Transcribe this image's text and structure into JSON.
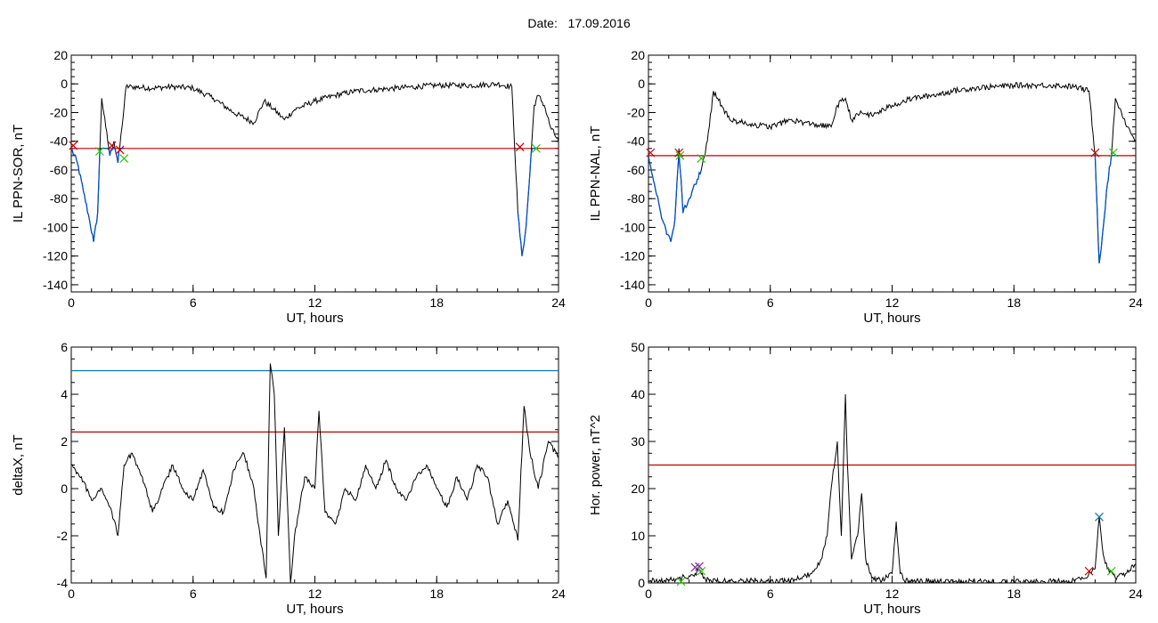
{
  "header": {
    "date_label": "Date:",
    "date_value": "17.09.2016"
  },
  "colors": {
    "ink": "#000000",
    "threshold_red": "#c00000",
    "threshold_cyan": "#0a74a8",
    "highlight_blue": "#0050c8",
    "marker_red": "#c00000",
    "marker_green": "#28c800",
    "marker_purple": "#8020a0"
  },
  "chart_data": [
    {
      "type": "line",
      "xlabel": "UT, hours",
      "ylabel": "IL PPN-SOR, nT",
      "xlim": [
        0,
        24
      ],
      "ylim": [
        -145,
        20
      ],
      "xticks": [
        "0",
        "6",
        "12",
        "18",
        "24"
      ],
      "yticks": [
        "20",
        "0",
        "-20",
        "-40",
        "-60",
        "-80",
        "-100",
        "-120",
        "-140"
      ],
      "threshold": {
        "y": -45,
        "color": "#c00000"
      },
      "series": {
        "x": [
          0,
          0.3,
          0.6,
          0.9,
          1.1,
          1.3,
          1.5,
          1.7,
          1.9,
          2.1,
          2.3,
          2.5,
          2.7,
          3,
          4,
          5,
          6,
          7,
          8,
          9,
          9.5,
          10,
          10.5,
          11,
          12,
          13,
          14,
          15,
          16,
          17,
          18,
          19,
          20,
          21,
          21.7,
          22,
          22.2,
          22.4,
          22.6,
          22.8,
          23,
          23.3,
          23.6,
          24
        ],
        "y": [
          -45,
          -55,
          -75,
          -95,
          -110,
          -90,
          -10,
          -30,
          -50,
          -40,
          -55,
          -30,
          -2,
          -2,
          -3,
          -2,
          -3,
          -10,
          -20,
          -27,
          -12,
          -18,
          -25,
          -18,
          -12,
          -8,
          -5,
          -4,
          -3,
          -2,
          -1,
          -1,
          -1,
          0,
          -2,
          -90,
          -120,
          -100,
          -60,
          -15,
          -8,
          -15,
          -30,
          -40
        ]
      },
      "highlights": [
        {
          "x_range": [
            0,
            2.6
          ]
        },
        {
          "x_range": [
            22,
            23
          ]
        }
      ],
      "markers": [
        {
          "x": 0.1,
          "y": -43,
          "shape": "x",
          "color": "#c00000"
        },
        {
          "x": 1.4,
          "y": -47,
          "shape": "x",
          "color": "#28c800"
        },
        {
          "x": 2.0,
          "y": -43,
          "shape": "x",
          "color": "#c00000"
        },
        {
          "x": 2.4,
          "y": -46,
          "shape": "x",
          "color": "#c00000"
        },
        {
          "x": 2.6,
          "y": -52,
          "shape": "x",
          "color": "#28c800"
        },
        {
          "x": 22.1,
          "y": -44,
          "shape": "x",
          "color": "#c00000"
        },
        {
          "x": 22.9,
          "y": -45,
          "shape": "x",
          "color": "#28c800"
        }
      ]
    },
    {
      "type": "line",
      "xlabel": "UT, hours",
      "ylabel": "IL PPN-NAL, nT",
      "xlim": [
        0,
        24
      ],
      "ylim": [
        -145,
        20
      ],
      "xticks": [
        "0",
        "6",
        "12",
        "18",
        "24"
      ],
      "yticks": [
        "20",
        "0",
        "-20",
        "-40",
        "-60",
        "-80",
        "-100",
        "-120",
        "-140"
      ],
      "threshold": {
        "y": -50,
        "color": "#c00000"
      },
      "series": {
        "x": [
          0,
          0.3,
          0.6,
          0.9,
          1.1,
          1.3,
          1.5,
          1.7,
          2,
          2.3,
          2.6,
          2.9,
          3.2,
          3.6,
          4,
          5,
          6,
          7,
          8,
          9,
          9.3,
          9.7,
          10,
          10.5,
          11,
          12,
          13,
          14,
          15,
          16,
          17,
          18,
          19,
          20,
          21,
          21.7,
          22,
          22.2,
          22.4,
          22.6,
          22.8,
          23,
          23.3,
          23.6,
          24
        ],
        "y": [
          -50,
          -70,
          -90,
          -105,
          -110,
          -95,
          -45,
          -90,
          -80,
          -70,
          -60,
          -40,
          -5,
          -15,
          -25,
          -28,
          -30,
          -25,
          -28,
          -30,
          -15,
          -10,
          -25,
          -20,
          -22,
          -15,
          -10,
          -8,
          -5,
          -3,
          -2,
          -1,
          -1,
          -1,
          -2,
          -5,
          -50,
          -125,
          -100,
          -70,
          -50,
          -10,
          -20,
          -30,
          -40
        ]
      },
      "highlights": [
        {
          "x_range": [
            0,
            2.6
          ]
        },
        {
          "x_range": [
            22,
            23
          ]
        }
      ],
      "markers": [
        {
          "x": 0.1,
          "y": -48,
          "shape": "x",
          "color": "#c00000"
        },
        {
          "x": 1.5,
          "y": -48,
          "shape": "x",
          "color": "#c00000"
        },
        {
          "x": 1.55,
          "y": -50,
          "shape": "x",
          "color": "#28c800"
        },
        {
          "x": 2.6,
          "y": -52,
          "shape": "x",
          "color": "#28c800"
        },
        {
          "x": 22.0,
          "y": -48,
          "shape": "x",
          "color": "#c00000"
        },
        {
          "x": 22.9,
          "y": -48,
          "shape": "x",
          "color": "#28c800"
        }
      ]
    },
    {
      "type": "line",
      "xlabel": "UT, hours",
      "ylabel": "deltaX, nT",
      "xlim": [
        0,
        24
      ],
      "ylim": [
        -4,
        6
      ],
      "xticks": [
        "0",
        "6",
        "12",
        "18",
        "24"
      ],
      "yticks": [
        "6",
        "4",
        "2",
        "0",
        "-2",
        "-4"
      ],
      "thresholds": [
        {
          "y": 5.0,
          "color": "#0a74a8"
        },
        {
          "y": 2.4,
          "color": "#c00000"
        }
      ],
      "series": {
        "x": [
          0,
          0.5,
          1,
          1.5,
          2,
          2.3,
          2.6,
          3,
          3.5,
          4,
          4.5,
          5,
          5.5,
          6,
          6.5,
          7,
          7.5,
          8,
          8.5,
          9,
          9.3,
          9.6,
          9.8,
          10,
          10.2,
          10.5,
          10.8,
          11,
          11.5,
          12,
          12.2,
          12.5,
          13,
          13.5,
          14,
          14.5,
          15,
          15.5,
          16,
          16.5,
          17,
          17.5,
          18,
          18.5,
          19,
          19.5,
          20,
          20.5,
          21,
          21.5,
          22,
          22.3,
          22.6,
          23,
          23.5,
          24
        ],
        "y": [
          1,
          0.5,
          -0.5,
          0,
          -1,
          -2,
          1,
          1.5,
          0.5,
          -1,
          0,
          1,
          0,
          -0.5,
          0.8,
          -0.8,
          -1,
          0.8,
          1.5,
          0,
          -2,
          -3.8,
          5.3,
          4,
          -2,
          2.6,
          -4,
          -2,
          0.5,
          0,
          3.3,
          -1,
          -1.5,
          0,
          -0.5,
          1,
          0,
          1.2,
          0,
          -0.5,
          0.5,
          1,
          0,
          -0.8,
          0.5,
          -0.5,
          1,
          0.5,
          -1.5,
          -0.5,
          -2.2,
          3.5,
          1.5,
          0,
          2,
          1.3
        ]
      }
    },
    {
      "type": "line",
      "xlabel": "UT, hours",
      "ylabel": "Hor. power, nT^2",
      "xlim": [
        0,
        24
      ],
      "ylim": [
        0,
        50
      ],
      "xticks": [
        "0",
        "6",
        "12",
        "18",
        "24"
      ],
      "yticks": [
        "50",
        "40",
        "30",
        "20",
        "10",
        "0"
      ],
      "threshold": {
        "y": 25,
        "color": "#c00000"
      },
      "series": {
        "x": [
          0,
          0.5,
          1,
          1.5,
          2,
          2.3,
          2.5,
          2.7,
          3,
          4,
          5,
          6,
          7,
          7.5,
          8,
          8.5,
          8.8,
          9,
          9.3,
          9.5,
          9.7,
          9.8,
          10,
          10.3,
          10.5,
          10.7,
          11,
          11.5,
          12,
          12.2,
          12.4,
          12.6,
          13,
          14,
          15,
          16,
          17,
          18,
          19,
          20,
          21,
          21.5,
          21.8,
          22,
          22.2,
          22.4,
          22.6,
          23,
          23.5,
          24
        ],
        "y": [
          0.5,
          0.3,
          0.5,
          1,
          1.5,
          2,
          3,
          1,
          0.5,
          0.3,
          0.5,
          0.2,
          0.5,
          1,
          2,
          5,
          10,
          20,
          30,
          10,
          40,
          25,
          5,
          10,
          19,
          5,
          1,
          0.5,
          2,
          13,
          2,
          0.5,
          0.3,
          0.5,
          0.2,
          0.3,
          0.2,
          0.2,
          0.2,
          0.3,
          0.5,
          1,
          2,
          3,
          14,
          6,
          3,
          1,
          2,
          4
        ]
      },
      "markers": [
        {
          "x": 2.3,
          "y": 3.3,
          "shape": "x",
          "color": "#8020a0"
        },
        {
          "x": 2.5,
          "y": 3.5,
          "shape": "x",
          "color": "#8020a0"
        },
        {
          "x": 2.6,
          "y": 2.5,
          "shape": "x",
          "color": "#28c800"
        },
        {
          "x": 1.6,
          "y": 0.3,
          "shape": "x",
          "color": "#28c800"
        },
        {
          "x": 21.7,
          "y": 2.5,
          "shape": "x",
          "color": "#c00000"
        },
        {
          "x": 22.2,
          "y": 14,
          "shape": "x",
          "color": "#0a74a8"
        },
        {
          "x": 22.8,
          "y": 2.5,
          "shape": "x",
          "color": "#28c800"
        }
      ]
    }
  ]
}
